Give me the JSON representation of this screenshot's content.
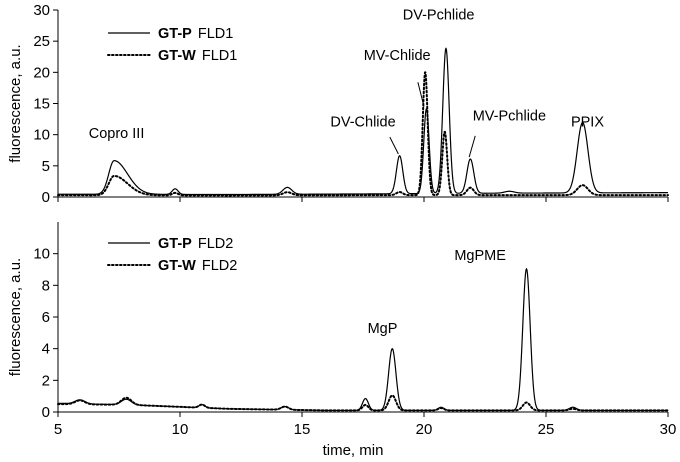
{
  "chart_data": [
    {
      "type": "line",
      "ylabel": "fluorescence, a.u.",
      "xlim": [
        5,
        30
      ],
      "ylim": [
        0,
        30
      ],
      "yticks": [
        0,
        5,
        10,
        15,
        20,
        25,
        30
      ],
      "legend": {
        "placement": "top-left",
        "entries": [
          {
            "bold": "GT-P",
            "rest": "FLD1",
            "style": "solid"
          },
          {
            "bold": "GT-W",
            "rest": "FLD1",
            "style": "dotted"
          }
        ]
      },
      "annotations": [
        {
          "text": "Copro III",
          "x": 7.4,
          "y": 9.5
        },
        {
          "text": "DV-Chlide",
          "x": 17.5,
          "y": 11.3
        },
        {
          "text": "MV-Chlide",
          "x": 18.9,
          "y": 22.0
        },
        {
          "text": "DV-Pchlide",
          "x": 20.6,
          "y": 28.5
        },
        {
          "text": "MV-Pchlide",
          "x": 23.5,
          "y": 12.3
        },
        {
          "text": "PPIX",
          "x": 26.7,
          "y": 11.3
        }
      ],
      "series": [
        {
          "style": "solid",
          "baseline": [
            [
              5,
              0.45
            ],
            [
              12,
              0.4
            ],
            [
              18,
              0.5
            ],
            [
              22,
              0.6
            ],
            [
              30,
              0.7
            ]
          ],
          "peaks": [
            {
              "x": 7.3,
              "h": 5.4,
              "w": 0.22,
              "tail": 0.55
            },
            {
              "x": 9.8,
              "h": 0.9,
              "w": 0.12
            },
            {
              "x": 14.4,
              "h": 1.1,
              "w": 0.18
            },
            {
              "x": 19.0,
              "h": 6.1,
              "w": 0.13
            },
            {
              "x": 20.1,
              "h": 13.6,
              "w": 0.11
            },
            {
              "x": 20.9,
              "h": 23.3,
              "w": 0.13
            },
            {
              "x": 21.9,
              "h": 5.5,
              "w": 0.14
            },
            {
              "x": 23.5,
              "h": 0.3,
              "w": 0.2
            },
            {
              "x": 26.5,
              "h": 11.3,
              "w": 0.22
            }
          ]
        },
        {
          "style": "dotted",
          "baseline": [
            [
              5,
              0.3
            ],
            [
              12,
              0.25
            ],
            [
              18,
              0.3
            ],
            [
              22,
              0.3
            ],
            [
              30,
              0.3
            ]
          ],
          "peaks": [
            {
              "x": 7.3,
              "h": 3.1,
              "w": 0.22,
              "tail": 0.55
            },
            {
              "x": 9.8,
              "h": 0.4,
              "w": 0.12
            },
            {
              "x": 14.4,
              "h": 0.5,
              "w": 0.18
            },
            {
              "x": 19.0,
              "h": 0.5,
              "w": 0.13
            },
            {
              "x": 20.05,
              "h": 19.8,
              "w": 0.1
            },
            {
              "x": 20.85,
              "h": 10.2,
              "w": 0.1
            },
            {
              "x": 21.9,
              "h": 1.2,
              "w": 0.14
            },
            {
              "x": 26.5,
              "h": 1.6,
              "w": 0.22
            }
          ]
        }
      ]
    },
    {
      "type": "line",
      "xlabel": "time, min",
      "ylabel": "fluorescence, a.u.",
      "xlim": [
        5,
        30
      ],
      "ylim": [
        0,
        12
      ],
      "xticks": [
        5,
        10,
        15,
        20,
        25,
        30
      ],
      "yticks": [
        0,
        2,
        4,
        6,
        8,
        10
      ],
      "legend": {
        "placement": "top-left",
        "entries": [
          {
            "bold": "GT-P",
            "rest": "FLD2",
            "style": "solid"
          },
          {
            "bold": "GT-W",
            "rest": "FLD2",
            "style": "dotted"
          }
        ]
      },
      "annotations": [
        {
          "text": "MgP",
          "x": 18.3,
          "y": 5.0
        },
        {
          "text": "MgPME",
          "x": 22.3,
          "y": 9.6
        }
      ],
      "series": [
        {
          "style": "solid",
          "baseline": [
            [
              5,
              0.55
            ],
            [
              8,
              0.45
            ],
            [
              12,
              0.2
            ],
            [
              16,
              0.1
            ],
            [
              20,
              0.1
            ],
            [
              30,
              0.1
            ]
          ],
          "peaks": [
            {
              "x": 5.9,
              "h": 0.25,
              "w": 0.2
            },
            {
              "x": 7.8,
              "h": 0.35,
              "w": 0.2
            },
            {
              "x": 10.9,
              "h": 0.2,
              "w": 0.12
            },
            {
              "x": 14.3,
              "h": 0.2,
              "w": 0.15
            },
            {
              "x": 17.6,
              "h": 0.75,
              "w": 0.12
            },
            {
              "x": 18.7,
              "h": 3.9,
              "w": 0.15
            },
            {
              "x": 20.7,
              "h": 0.2,
              "w": 0.12
            },
            {
              "x": 24.2,
              "h": 8.95,
              "w": 0.15
            },
            {
              "x": 26.1,
              "h": 0.2,
              "w": 0.15
            }
          ]
        },
        {
          "style": "dotted",
          "baseline": [
            [
              5,
              0.5
            ],
            [
              8,
              0.45
            ],
            [
              12,
              0.2
            ],
            [
              16,
              0.1
            ],
            [
              20,
              0.1
            ],
            [
              30,
              0.1
            ]
          ],
          "peaks": [
            {
              "x": 5.9,
              "h": 0.25,
              "w": 0.2
            },
            {
              "x": 7.8,
              "h": 0.45,
              "w": 0.2
            },
            {
              "x": 10.9,
              "h": 0.2,
              "w": 0.12
            },
            {
              "x": 14.3,
              "h": 0.2,
              "w": 0.15
            },
            {
              "x": 17.6,
              "h": 0.35,
              "w": 0.12
            },
            {
              "x": 18.7,
              "h": 0.95,
              "w": 0.15
            },
            {
              "x": 20.7,
              "h": 0.15,
              "w": 0.12
            },
            {
              "x": 24.2,
              "h": 0.5,
              "w": 0.15
            },
            {
              "x": 26.1,
              "h": 0.1,
              "w": 0.15
            }
          ]
        }
      ]
    }
  ]
}
